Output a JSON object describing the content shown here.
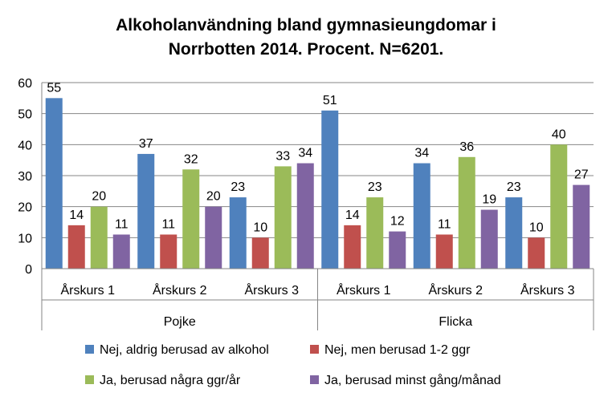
{
  "chart_data": {
    "type": "bar",
    "title": [
      "Alkoholanvändning  bland gymnasieungdomar i",
      "Norrbotten 2014. Procent. N=6201."
    ],
    "groups": [
      {
        "name": "Pojke",
        "categories": [
          "Årskurs 1",
          "Årskurs 2",
          "Årskurs 3"
        ]
      },
      {
        "name": "Flicka",
        "categories": [
          "Årskurs 1",
          "Årskurs 2",
          "Årskurs 3"
        ]
      }
    ],
    "series": [
      {
        "name": "Nej, aldrig berusad av alkohol",
        "color": "#4F81BD",
        "values": [
          55,
          37,
          23,
          51,
          34,
          23
        ]
      },
      {
        "name": "Nej, men berusad 1-2 ggr",
        "color": "#C0504D",
        "values": [
          14,
          11,
          10,
          14,
          11,
          10
        ]
      },
      {
        "name": "Ja, berusad några ggr/år",
        "color": "#9BBB59",
        "values": [
          20,
          32,
          33,
          23,
          36,
          40
        ]
      },
      {
        "name": "Ja, berusad minst gång/månad",
        "color": "#8064A2",
        "values": [
          11,
          20,
          34,
          12,
          19,
          27
        ]
      }
    ],
    "ylim": [
      0,
      60
    ],
    "yticks": [
      0,
      10,
      20,
      30,
      40,
      50,
      60
    ],
    "grid": true,
    "data_labels": true,
    "legend_position": "bottom"
  }
}
